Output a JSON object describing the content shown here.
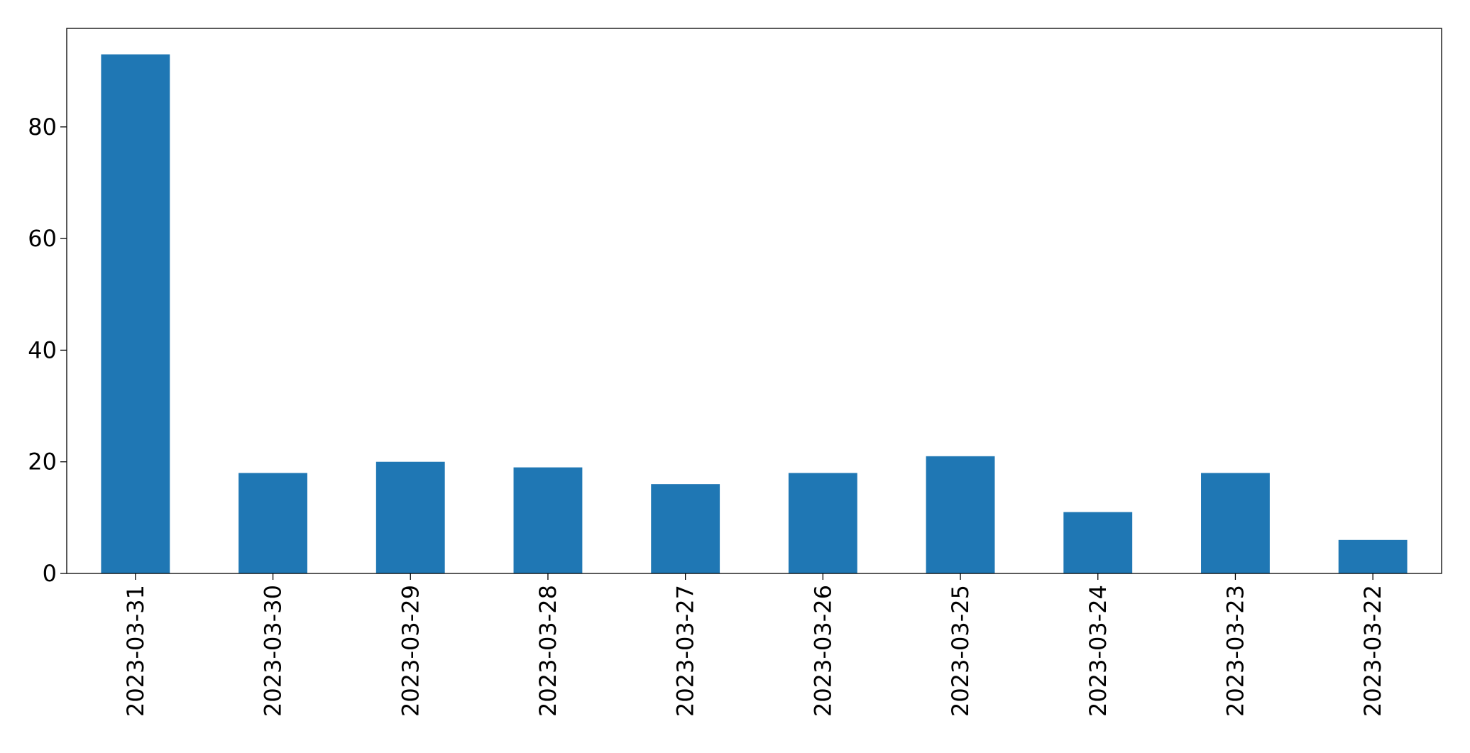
{
  "chart_data": {
    "type": "bar",
    "categories": [
      "2023-03-31",
      "2023-03-30",
      "2023-03-29",
      "2023-03-28",
      "2023-03-27",
      "2023-03-26",
      "2023-03-25",
      "2023-03-24",
      "2023-03-23",
      "2023-03-22"
    ],
    "values": [
      93,
      18,
      20,
      19,
      16,
      18,
      21,
      11,
      18,
      6
    ],
    "color": "#1f77b4",
    "ylim": [
      0,
      97.65
    ],
    "yticks": [
      0,
      20,
      40,
      60,
      80
    ],
    "grid": false
  }
}
